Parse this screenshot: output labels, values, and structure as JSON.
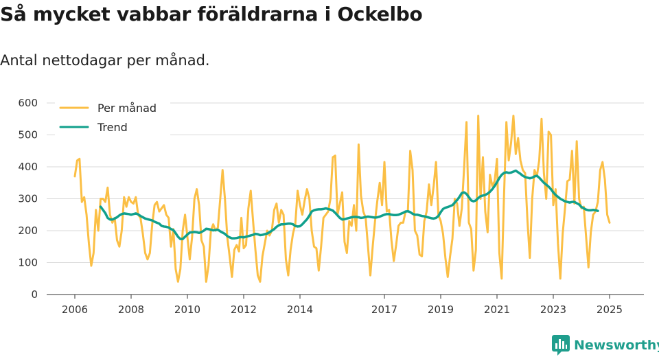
{
  "header": {
    "title": "Så mycket vabbar föräldrarna i Ockelbo",
    "subtitle": "Antal nettodagar per månad."
  },
  "brand": {
    "name": "Newsworthy",
    "icon": "bar-chart-logo-icon",
    "color": "#1f9e8d"
  },
  "colors": {
    "monthly": "#fbbf45",
    "trend": "#11a08c",
    "grid": "#d9d9d9",
    "axis": "#333333"
  },
  "chart_data": {
    "type": "line",
    "title": "Så mycket vabbar föräldrarna i Ockelbo",
    "subtitle": "Antal nettodagar per månad.",
    "xlabel": "",
    "ylabel": "",
    "ylim": [
      0,
      600
    ],
    "xlim": [
      2005.0,
      2026.0
    ],
    "y_ticks": [
      0,
      100,
      200,
      300,
      400,
      500,
      600
    ],
    "x_ticks": [
      2006,
      2008,
      2010,
      2012,
      2014,
      2017,
      2019,
      2021,
      2023,
      2025
    ],
    "grid": "horizontal",
    "legend_position": "top-left",
    "series": [
      {
        "name": "Per månad",
        "start": [
          2006,
          1
        ],
        "values": [
          370,
          420,
          425,
          290,
          305,
          250,
          160,
          90,
          130,
          265,
          200,
          300,
          300,
          290,
          335,
          250,
          225,
          240,
          170,
          150,
          200,
          305,
          275,
          305,
          290,
          285,
          305,
          250,
          240,
          190,
          130,
          110,
          130,
          220,
          280,
          290,
          260,
          270,
          280,
          250,
          240,
          150,
          205,
          80,
          40,
          80,
          200,
          250,
          180,
          110,
          180,
          300,
          330,
          280,
          170,
          150,
          40,
          90,
          200,
          220,
          200,
          210,
          300,
          390,
          300,
          180,
          120,
          55,
          140,
          155,
          135,
          240,
          145,
          155,
          270,
          325,
          230,
          140,
          60,
          40,
          120,
          160,
          200,
          185,
          200,
          265,
          285,
          225,
          265,
          250,
          110,
          60,
          140,
          190,
          220,
          325,
          280,
          250,
          295,
          330,
          300,
          200,
          150,
          145,
          75,
          150,
          240,
          250,
          260,
          300,
          430,
          435,
          250,
          285,
          320,
          165,
          130,
          230,
          215,
          280,
          200,
          470,
          310,
          260,
          240,
          150,
          60,
          150,
          230,
          295,
          350,
          280,
          415,
          260,
          265,
          170,
          105,
          155,
          215,
          225,
          225,
          260,
          260,
          450,
          390,
          200,
          185,
          125,
          120,
          230,
          260,
          345,
          280,
          340,
          415,
          250,
          230,
          190,
          115,
          55,
          120,
          175,
          300,
          285,
          215,
          270,
          400,
          540,
          225,
          205,
          75,
          140,
          560,
          300,
          430,
          260,
          195,
          375,
          340,
          355,
          425,
          130,
          50,
          310,
          540,
          420,
          475,
          560,
          440,
          490,
          420,
          390,
          380,
          230,
          115,
          300,
          390,
          370,
          420,
          550,
          380,
          300,
          510,
          500,
          280,
          330,
          160,
          50,
          190,
          270,
          355,
          360,
          450,
          285,
          480,
          300,
          270,
          275,
          180,
          85,
          195,
          250,
          260,
          290,
          390,
          415,
          360,
          250,
          225
        ]
      },
      {
        "name": "Trend",
        "start": [
          2006,
          12
        ],
        "values": [
          275,
          265,
          255,
          240,
          235,
          235,
          238,
          242,
          248,
          252,
          254,
          253,
          252,
          250,
          252,
          254,
          251,
          246,
          242,
          238,
          236,
          234,
          232,
          228,
          225,
          222,
          215,
          213,
          212,
          210,
          205,
          202,
          192,
          181,
          174,
          174,
          181,
          188,
          194,
          195,
          196,
          195,
          193,
          196,
          200,
          206,
          205,
          203,
          201,
          202,
          203,
          198,
          194,
          190,
          183,
          179,
          176,
          176,
          177,
          179,
          180,
          179,
          181,
          183,
          185,
          187,
          190,
          189,
          186,
          187,
          189,
          191,
          195,
          200,
          205,
          212,
          217,
          220,
          220,
          221,
          222,
          222,
          220,
          215,
          213,
          214,
          220,
          228,
          236,
          247,
          260,
          264,
          266,
          267,
          267,
          268,
          270,
          268,
          266,
          263,
          256,
          248,
          240,
          235,
          236,
          238,
          240,
          242,
          243,
          243,
          242,
          240,
          241,
          243,
          244,
          243,
          242,
          241,
          242,
          244,
          247,
          250,
          252,
          252,
          250,
          249,
          249,
          250,
          253,
          256,
          260,
          261,
          258,
          253,
          250,
          250,
          248,
          246,
          245,
          243,
          241,
          239,
          238,
          240,
          246,
          258,
          268,
          272,
          274,
          277,
          280,
          288,
          296,
          306,
          318,
          320,
          315,
          305,
          295,
          292,
          295,
          302,
          308,
          310,
          312,
          316,
          322,
          330,
          340,
          352,
          365,
          375,
          381,
          383,
          381,
          382,
          385,
          388,
          383,
          378,
          372,
          368,
          366,
          364,
          366,
          370,
          372,
          366,
          358,
          350,
          344,
          338,
          330,
          320,
          312,
          306,
          300,
          296,
          292,
          290,
          288,
          290,
          290,
          286,
          282,
          274,
          270,
          266,
          264,
          264,
          265,
          264,
          262
        ]
      }
    ]
  }
}
